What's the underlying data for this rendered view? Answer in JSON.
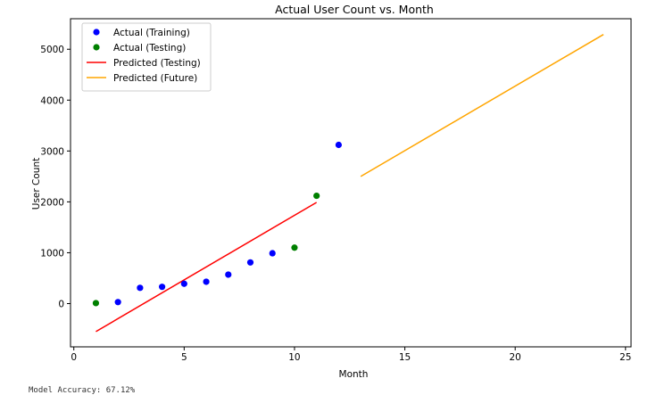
{
  "chart_data": {
    "type": "scatter",
    "title": "Actual User Count vs. Month",
    "xlabel": "Month",
    "ylabel": "User Count",
    "xlim": [
      -0.15,
      25.25
    ],
    "ylim": [
      -850,
      5600
    ],
    "x_ticks": [
      0,
      5,
      10,
      15,
      20,
      25
    ],
    "y_ticks": [
      0,
      1000,
      2000,
      3000,
      4000,
      5000
    ],
    "grid": false,
    "legend_position": "top-left",
    "series": [
      {
        "name": "Actual (Training)",
        "kind": "scatter",
        "color": "#0000ff",
        "x": [
          2,
          3,
          4,
          5,
          6,
          7,
          8,
          9,
          12
        ],
        "y": [
          30,
          310,
          330,
          390,
          430,
          570,
          810,
          990,
          3120
        ]
      },
      {
        "name": "Actual (Testing)",
        "kind": "scatter",
        "color": "#008000",
        "x": [
          1,
          10,
          11
        ],
        "y": [
          10,
          1100,
          2120
        ]
      },
      {
        "name": "Predicted (Testing)",
        "kind": "line",
        "color": "#ff0000",
        "x": [
          1,
          11
        ],
        "y": [
          -550,
          1990
        ]
      },
      {
        "name": "Predicted (Future)",
        "kind": "line",
        "color": "#ffa500",
        "x": [
          13,
          24
        ],
        "y": [
          2500,
          5290
        ]
      }
    ]
  },
  "footer_text": "Model Accuracy: 67.12%"
}
